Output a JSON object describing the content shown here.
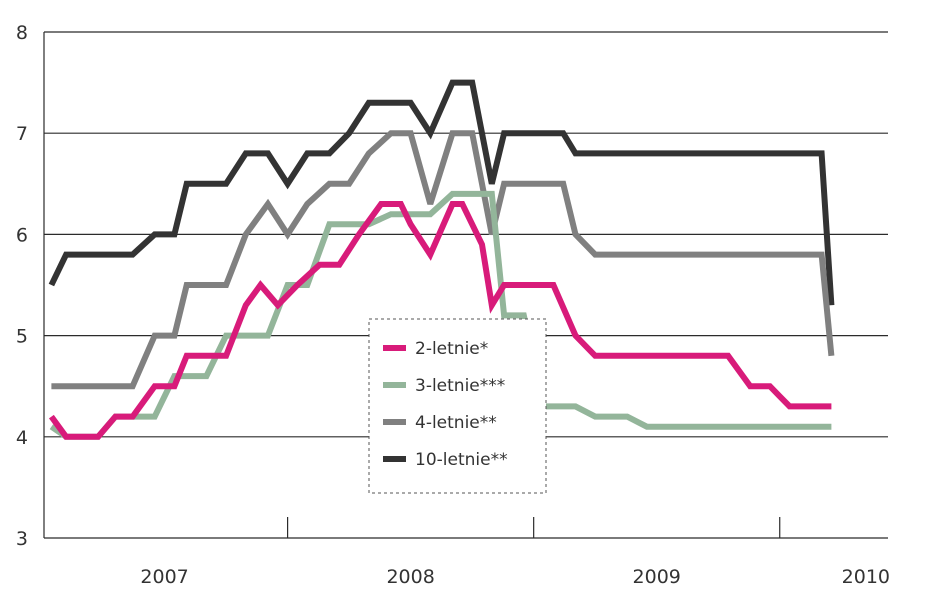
{
  "chart_data": {
    "type": "line",
    "title": "",
    "xlabel": "",
    "ylabel": "",
    "ylim": [
      3,
      8
    ],
    "yticks": [
      "3",
      "4",
      "5",
      "6",
      "7",
      "8"
    ],
    "xlim": [
      2006.76,
      2010.19
    ],
    "xticks": [
      {
        "label": "2007",
        "value": 2007.25
      },
      {
        "label": "2008",
        "value": 2008.25
      },
      {
        "label": "2009",
        "value": 2009.25
      },
      {
        "label": "2010",
        "value": 2010.1
      }
    ],
    "year_separators": [
      2007.75,
      2008.75,
      2009.75
    ],
    "grid": "horizontal",
    "legend_position": "center",
    "series": [
      {
        "name": "2-letnie*",
        "color": "#d81b7a",
        "x": [
          2006.79,
          2006.85,
          2006.9,
          2006.98,
          2007.05,
          2007.12,
          2007.21,
          2007.29,
          2007.34,
          2007.42,
          2007.5,
          2007.58,
          2007.64,
          2007.71,
          2007.79,
          2007.88,
          2007.96,
          2008.04,
          2008.13,
          2008.21,
          2008.25,
          2008.33,
          2008.42,
          2008.46,
          2008.54,
          2008.58,
          2008.63,
          2008.71,
          2008.79,
          2008.83,
          2008.92,
          2009.0,
          2009.04,
          2009.13,
          2009.21,
          2009.29,
          2009.38,
          2009.46,
          2009.5,
          2009.54,
          2009.63,
          2009.71,
          2009.75,
          2009.79,
          2009.84,
          2009.92,
          2009.96
        ],
        "values": [
          4.2,
          4.0,
          4.0,
          4.0,
          4.2,
          4.2,
          4.5,
          4.5,
          4.8,
          4.8,
          4.8,
          5.3,
          5.5,
          5.3,
          5.5,
          5.7,
          5.7,
          6.0,
          6.3,
          6.3,
          6.1,
          5.8,
          6.3,
          6.3,
          5.9,
          5.3,
          5.5,
          5.5,
          5.5,
          5.5,
          5.0,
          4.8,
          4.8,
          4.8,
          4.8,
          4.8,
          4.8,
          4.8,
          4.8,
          4.8,
          4.5,
          4.5,
          4.4,
          4.3,
          4.3,
          4.3,
          4.3
        ]
      },
      {
        "name": "3-letnie***",
        "color": "#93b59a",
        "x": [
          2006.79,
          2006.85,
          2006.9,
          2006.98,
          2007.05,
          2007.12,
          2007.21,
          2007.29,
          2007.34,
          2007.42,
          2007.5,
          2007.58,
          2007.67,
          2007.75,
          2007.83,
          2007.92,
          2008.0,
          2008.08,
          2008.17,
          2008.25,
          2008.33,
          2008.42,
          2008.5,
          2008.58,
          2008.63,
          2008.71,
          2008.79,
          2008.83,
          2008.92,
          2009.0,
          2009.04,
          2009.13,
          2009.21,
          2009.29,
          2009.38,
          2009.46,
          2009.54,
          2009.63,
          2009.71,
          2009.79,
          2009.84,
          2009.92,
          2009.96
        ],
        "values": [
          4.1,
          4.0,
          4.0,
          4.0,
          4.2,
          4.2,
          4.2,
          4.6,
          4.6,
          4.6,
          5.0,
          5.0,
          5.0,
          5.5,
          5.5,
          6.1,
          6.1,
          6.1,
          6.2,
          6.2,
          6.2,
          6.4,
          6.4,
          6.4,
          5.2,
          5.2,
          4.3,
          4.3,
          4.3,
          4.2,
          4.2,
          4.2,
          4.1,
          4.1,
          4.1,
          4.1,
          4.1,
          4.1,
          4.1,
          4.1,
          4.1,
          4.1,
          4.1
        ]
      },
      {
        "name": "4-letnie**",
        "color": "#808080",
        "x": [
          2006.79,
          2006.85,
          2006.9,
          2006.98,
          2007.05,
          2007.12,
          2007.21,
          2007.29,
          2007.34,
          2007.42,
          2007.5,
          2007.58,
          2007.67,
          2007.75,
          2007.83,
          2007.92,
          2008.0,
          2008.08,
          2008.17,
          2008.25,
          2008.33,
          2008.42,
          2008.5,
          2008.54,
          2008.58,
          2008.63,
          2008.71,
          2008.79,
          2008.87,
          2008.92,
          2009.0,
          2009.04,
          2009.13,
          2009.21,
          2009.29,
          2009.38,
          2009.46,
          2009.54,
          2009.63,
          2009.71,
          2009.75,
          2009.79,
          2009.84,
          2009.92,
          2009.96
        ],
        "values": [
          4.5,
          4.5,
          4.5,
          4.5,
          4.5,
          4.5,
          5.0,
          5.0,
          5.5,
          5.5,
          5.5,
          6.0,
          6.3,
          6.0,
          6.3,
          6.5,
          6.5,
          6.8,
          7.0,
          7.0,
          6.3,
          7.0,
          7.0,
          6.5,
          6.0,
          6.5,
          6.5,
          6.5,
          6.5,
          6.0,
          5.8,
          5.8,
          5.8,
          5.8,
          5.8,
          5.8,
          5.8,
          5.8,
          5.8,
          5.8,
          5.8,
          5.8,
          5.8,
          5.8,
          4.8
        ]
      },
      {
        "name": "10-letnie**",
        "color": "#333333",
        "x": [
          2006.79,
          2006.85,
          2006.9,
          2006.98,
          2007.05,
          2007.12,
          2007.21,
          2007.29,
          2007.34,
          2007.42,
          2007.5,
          2007.58,
          2007.67,
          2007.75,
          2007.83,
          2007.92,
          2008.0,
          2008.08,
          2008.17,
          2008.25,
          2008.33,
          2008.42,
          2008.5,
          2008.54,
          2008.58,
          2008.63,
          2008.71,
          2008.79,
          2008.87,
          2008.92,
          2009.0,
          2009.04,
          2009.13,
          2009.21,
          2009.29,
          2009.38,
          2009.46,
          2009.54,
          2009.63,
          2009.71,
          2009.75,
          2009.79,
          2009.84,
          2009.92,
          2009.96
        ],
        "values": [
          5.5,
          5.8,
          5.8,
          5.8,
          5.8,
          5.8,
          6.0,
          6.0,
          6.5,
          6.5,
          6.5,
          6.8,
          6.8,
          6.5,
          6.8,
          6.8,
          7.0,
          7.3,
          7.3,
          7.3,
          7.0,
          7.5,
          7.5,
          7.0,
          6.5,
          7.0,
          7.0,
          7.0,
          7.0,
          6.8,
          6.8,
          6.8,
          6.8,
          6.8,
          6.8,
          6.8,
          6.8,
          6.8,
          6.8,
          6.8,
          6.8,
          6.8,
          6.8,
          6.8,
          5.3
        ]
      }
    ]
  }
}
